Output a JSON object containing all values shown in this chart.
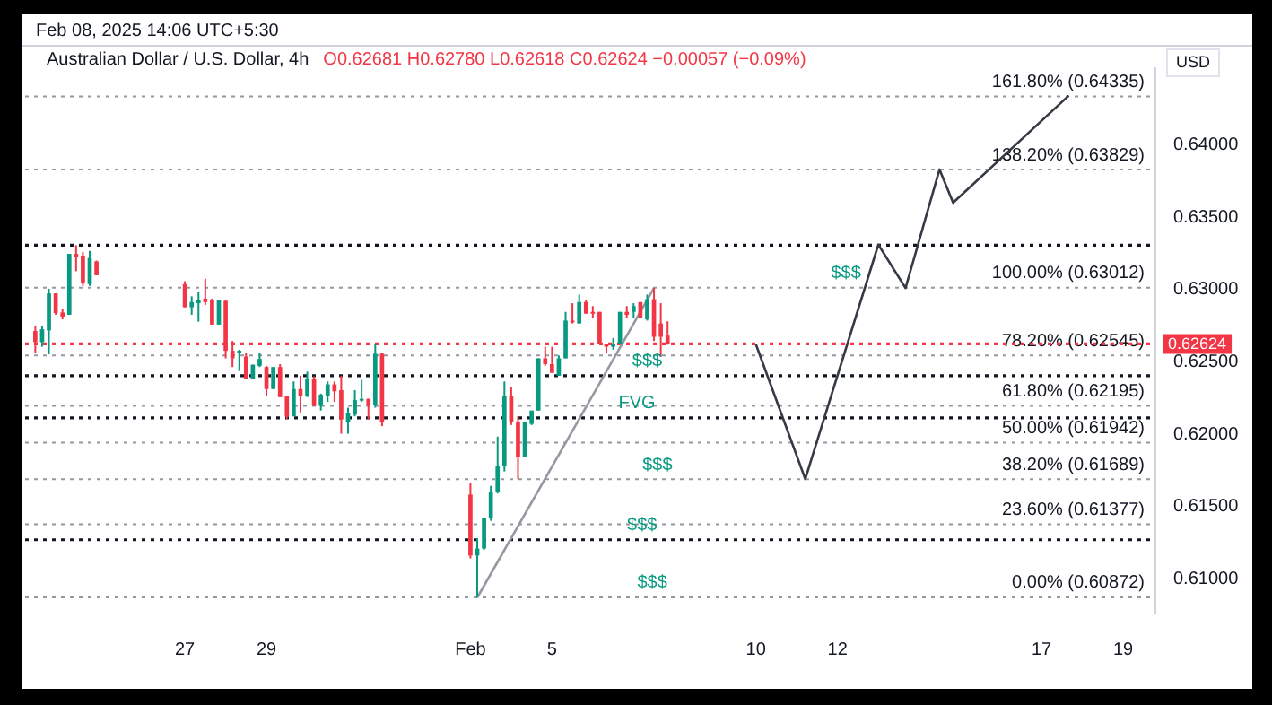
{
  "chart_data": {
    "type": "candlestick",
    "title": "Australian Dollar / U.S. Dollar, 4h",
    "subtitle": "O0.62681 H0.62780 L0.62618 C0.62624 −0.00057 (−0.09%)",
    "ylabel": "USD",
    "annotations": [
      "Feb 08, 2025 14:06 UTC+5:30",
      {
        "text": "$$$",
        "x": "2025-02-12T05:00",
        "y": 0.63012
      },
      {
        "text": "$$$",
        "x": "2025-02-07T08:00",
        "y": 0.62404
      },
      {
        "text": "FVG",
        "x": "2025-02-07T02:00",
        "y": 0.62112
      },
      {
        "text": "$$$",
        "x": "2025-02-07T14:00",
        "y": 0.61689
      },
      {
        "text": "$$$",
        "x": "2025-02-07T05:00",
        "y": 0.6127
      },
      {
        "text": "$$$",
        "x": "2025-02-07T11:00",
        "y": 0.60872
      }
    ],
    "x": [
      "2025-01-23T08:00",
      "2025-01-23T12:00",
      "2025-01-23T16:00",
      "2025-01-23T20:00",
      "2025-01-24T00:00",
      "2025-01-24T04:00",
      "2025-01-24T08:00",
      "2025-01-24T12:00",
      "2025-01-24T16:00",
      "2025-01-24T20:00",
      "2025-01-27T00:00",
      "2025-01-27T04:00",
      "2025-01-27T08:00",
      "2025-01-27T12:00",
      "2025-01-27T16:00",
      "2025-01-27T20:00",
      "2025-01-28T00:00",
      "2025-01-28T04:00",
      "2025-01-28T08:00",
      "2025-01-28T12:00",
      "2025-01-28T16:00",
      "2025-01-28T20:00",
      "2025-01-29T00:00",
      "2025-01-29T04:00",
      "2025-01-29T08:00",
      "2025-01-29T12:00",
      "2025-01-29T16:00",
      "2025-01-29T20:00",
      "2025-01-30T00:00",
      "2025-01-30T04:00",
      "2025-01-30T08:00",
      "2025-01-30T12:00",
      "2025-01-30T16:00",
      "2025-01-30T20:00",
      "2025-01-31T00:00",
      "2025-01-31T04:00",
      "2025-01-31T08:00",
      "2025-01-31T12:00",
      "2025-01-31T16:00",
      "2025-01-31T20:00",
      "2025-02-03T00:00",
      "2025-02-03T04:00",
      "2025-02-03T08:00",
      "2025-02-03T12:00",
      "2025-02-03T16:00",
      "2025-02-03T20:00",
      "2025-02-04T00:00",
      "2025-02-04T04:00",
      "2025-02-04T08:00",
      "2025-02-04T12:00",
      "2025-02-04T16:00",
      "2025-02-04T20:00",
      "2025-02-05T00:00",
      "2025-02-05T04:00",
      "2025-02-05T08:00",
      "2025-02-05T12:00",
      "2025-02-05T16:00",
      "2025-02-05T20:00",
      "2025-02-06T00:00",
      "2025-02-06T04:00",
      "2025-02-06T08:00",
      "2025-02-06T12:00",
      "2025-02-06T16:00",
      "2025-02-06T20:00",
      "2025-02-07T00:00",
      "2025-02-07T04:00",
      "2025-02-07T08:00",
      "2025-02-07T12:00",
      "2025-02-07T16:00",
      "2025-02-07T20:00"
    ],
    "ohlc": [
      [
        0.62713,
        0.62744,
        0.62564,
        0.62636
      ],
      [
        0.62636,
        0.62744,
        0.62604,
        0.62725
      ],
      [
        0.62717,
        0.63005,
        0.62552,
        0.62973
      ],
      [
        0.62973,
        0.62973,
        0.62825,
        0.62837
      ],
      [
        0.62841,
        0.62865,
        0.62793,
        0.62813
      ],
      [
        0.62825,
        0.63246,
        0.62825,
        0.63246
      ],
      [
        0.63246,
        0.63306,
        0.63126,
        0.63226
      ],
      [
        0.63234,
        0.63258,
        0.63025,
        0.63045
      ],
      [
        0.63037,
        0.63266,
        0.63025,
        0.63218
      ],
      [
        0.63194,
        0.632,
        0.63098,
        0.63098
      ],
      [
        0.63037,
        0.63057,
        0.62877,
        0.62877
      ],
      [
        0.62877,
        0.62953,
        0.62825,
        0.62913
      ],
      [
        0.62905,
        0.62985,
        0.62777,
        0.62929
      ],
      [
        0.62937,
        0.63074,
        0.62893,
        0.62913
      ],
      [
        0.62929,
        0.62937,
        0.62757,
        0.62757
      ],
      [
        0.62757,
        0.62929,
        0.62757,
        0.62929
      ],
      [
        0.62921,
        0.62929,
        0.62524,
        0.62576
      ],
      [
        0.62576,
        0.62644,
        0.62464,
        0.62524
      ],
      [
        0.6256,
        0.62584,
        0.62436,
        0.62576
      ],
      [
        0.62536,
        0.6256,
        0.62384,
        0.62384
      ],
      [
        0.62384,
        0.6248,
        0.62384,
        0.6248
      ],
      [
        0.62472,
        0.62564,
        0.62464,
        0.6252
      ],
      [
        0.62464,
        0.62472,
        0.62264,
        0.62312
      ],
      [
        0.62312,
        0.62464,
        0.62312,
        0.62464
      ],
      [
        0.62464,
        0.62484,
        0.62256,
        0.62256
      ],
      [
        0.62264,
        0.62264,
        0.62103,
        0.62123
      ],
      [
        0.62123,
        0.62364,
        0.62123,
        0.62312
      ],
      [
        0.62312,
        0.62404,
        0.62151,
        0.62264
      ],
      [
        0.62264,
        0.62432,
        0.62256,
        0.62384
      ],
      [
        0.62384,
        0.624,
        0.62195,
        0.62195
      ],
      [
        0.62195,
        0.6228,
        0.62163,
        0.62272
      ],
      [
        0.62264,
        0.62364,
        0.62223,
        0.62344
      ],
      [
        0.62344,
        0.62364,
        0.62223,
        0.62296
      ],
      [
        0.62304,
        0.62404,
        0.62003,
        0.62103
      ],
      [
        0.62083,
        0.62183,
        0.62003,
        0.62143
      ],
      [
        0.62135,
        0.62304,
        0.62123,
        0.62235
      ],
      [
        0.62232,
        0.62376,
        0.62223,
        0.62244
      ],
      [
        0.62244,
        0.62244,
        0.62103,
        0.62203
      ],
      [
        0.62203,
        0.62624,
        0.62183,
        0.62556
      ],
      [
        0.62556,
        0.62564,
        0.62055,
        0.62083
      ],
      [
        0.61582,
        0.61662,
        0.61141,
        0.61161
      ],
      [
        0.61161,
        0.61281,
        0.60872,
        0.61209
      ],
      [
        0.61209,
        0.61421,
        0.612,
        0.61421
      ],
      [
        0.61421,
        0.61642,
        0.61401,
        0.61602
      ],
      [
        0.61602,
        0.61983,
        0.6159,
        0.61782
      ],
      [
        0.61782,
        0.62364,
        0.61742,
        0.62264
      ],
      [
        0.62264,
        0.62324,
        0.62063,
        0.62083
      ],
      [
        0.62083,
        0.62123,
        0.61689,
        0.61842
      ],
      [
        0.61842,
        0.62083,
        0.61842,
        0.62083
      ],
      [
        0.62071,
        0.62163,
        0.62063,
        0.62163
      ],
      [
        0.62163,
        0.62524,
        0.62163,
        0.62524
      ],
      [
        0.62524,
        0.62604,
        0.62472,
        0.62484
      ],
      [
        0.62484,
        0.62604,
        0.62424,
        0.62424
      ],
      [
        0.62404,
        0.62544,
        0.62404,
        0.62524
      ],
      [
        0.62524,
        0.62845,
        0.62524,
        0.62785
      ],
      [
        0.62785,
        0.62905,
        0.62765,
        0.62773
      ],
      [
        0.62765,
        0.62965,
        0.62765,
        0.62913
      ],
      [
        0.62913,
        0.62925,
        0.62833,
        0.62833
      ],
      [
        0.62845,
        0.62885,
        0.62805,
        0.62833
      ],
      [
        0.62845,
        0.62845,
        0.62624,
        0.62624
      ],
      [
        0.62624,
        0.62624,
        0.62564,
        0.62604
      ],
      [
        0.62604,
        0.62665,
        0.62584,
        0.62624
      ],
      [
        0.62624,
        0.62845,
        0.62624,
        0.62845
      ],
      [
        0.62845,
        0.62885,
        0.62805,
        0.62825
      ],
      [
        0.62845,
        0.62905,
        0.62805,
        0.62885
      ],
      [
        0.62913,
        0.62913,
        0.62805,
        0.62805
      ],
      [
        0.62793,
        0.62965,
        0.62785,
        0.62933
      ],
      [
        0.62933,
        0.63012,
        0.62644,
        0.62673
      ],
      [
        0.62765,
        0.62905,
        0.62536,
        0.62673
      ],
      [
        0.62681,
        0.6278,
        0.62618,
        0.62624
      ]
    ],
    "series": [
      {
        "type": "line",
        "color": "#9598a1",
        "x": [
          "2025-02-03T04:00",
          "2025-02-07T12:00"
        ],
        "values": [
          0.6087,
          0.6301
        ]
      },
      {
        "type": "line",
        "color": "#363a45",
        "x": [
          "2025-02-10T00:00",
          "2025-02-11T05:00",
          "2025-02-13T00:00",
          "2025-02-13T16:00",
          "2025-02-14T12:00",
          "2025-02-14T20:00",
          "2025-02-17T16:00"
        ],
        "values": [
          0.6262,
          0.6169,
          0.6331,
          0.6301,
          0.6383,
          0.636,
          0.6434
        ]
      }
    ],
    "xlim": [
      "2025-01-23T02:00",
      "2025-02-19T19:00"
    ],
    "ylim": [
      0.6076,
      0.6453
    ],
    "xticks": [
      {
        "value": "2025-01-27",
        "label": "27"
      },
      {
        "value": "2025-01-29",
        "label": "29"
      },
      {
        "value": "2025-02-03",
        "label": "Feb"
      },
      {
        "value": "2025-02-05",
        "label": "5"
      },
      {
        "value": "2025-02-10",
        "label": "10"
      },
      {
        "value": "2025-02-12",
        "label": "12"
      },
      {
        "value": "2025-02-17",
        "label": "17"
      },
      {
        "value": "2025-02-19",
        "label": "19"
      }
    ],
    "yticks": [
      {
        "value": 0.61,
        "label": "0.61000"
      },
      {
        "value": 0.615,
        "label": "0.61500"
      },
      {
        "value": 0.62,
        "label": "0.62000"
      },
      {
        "value": 0.625,
        "label": "0.62500"
      },
      {
        "value": 0.63,
        "label": "0.63000"
      },
      {
        "value": 0.635,
        "label": "0.63500"
      },
      {
        "value": 0.64,
        "label": "0.64000"
      }
    ],
    "ref_lines": [
      {
        "axis": "y",
        "value": 0.64335,
        "label": "161.80% (0.64335)",
        "line_style": "dotted"
      },
      {
        "axis": "y",
        "value": 0.63829,
        "label": "138.20% (0.63829)",
        "line_style": "dotted"
      },
      {
        "axis": "y",
        "value": 0.63012,
        "label": "100.00% (0.63012)",
        "line_style": "dotted"
      },
      {
        "axis": "y",
        "value": 0.62545,
        "label": "78.20% (0.62545)",
        "line_style": "dotted"
      },
      {
        "axis": "y",
        "value": 0.62195,
        "label": "61.80% (0.62195)",
        "line_style": "dotted"
      },
      {
        "axis": "y",
        "value": 0.61942,
        "label": "50.00% (0.61942)",
        "line_style": "dotted"
      },
      {
        "axis": "y",
        "value": 0.61689,
        "label": "38.20% (0.61689)",
        "line_style": "dotted"
      },
      {
        "axis": "y",
        "value": 0.61377,
        "label": "23.60% (0.61377)",
        "line_style": "dotted"
      },
      {
        "axis": "y",
        "value": 0.60872,
        "label": "0.00% (0.60872)",
        "line_style": "dotted"
      },
      {
        "axis": "y",
        "value": 0.63306,
        "color": "#131722",
        "line_style": "dotted"
      },
      {
        "axis": "y",
        "value": 0.62404,
        "color": "#131722",
        "line_style": "dotted"
      },
      {
        "axis": "y",
        "value": 0.62112,
        "color": "#131722",
        "line_style": "dotted"
      },
      {
        "axis": "y",
        "value": 0.6127,
        "color": "#131722",
        "line_style": "dotted"
      },
      {
        "axis": "y",
        "value": 0.62624,
        "label": "0.62624",
        "color": "#f23645",
        "line_style": "dotted"
      }
    ],
    "grid": false,
    "legend": false,
    "marker": "none"
  }
}
